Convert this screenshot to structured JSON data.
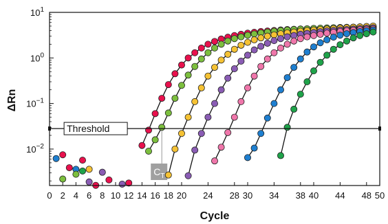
{
  "chart_data": {
    "type": "scatter",
    "title": "",
    "xlabel": "Cycle",
    "ylabel": "ΔRn",
    "xlim": [
      0,
      50
    ],
    "ylim_log10": [
      -2.8,
      1
    ],
    "log_y": true,
    "x_ticks": [
      0,
      2,
      4,
      6,
      8,
      10,
      12,
      14,
      16,
      18,
      20,
      24,
      28,
      30,
      34,
      38,
      40,
      44,
      48,
      50
    ],
    "y_ticks": [
      {
        "mantissa": "10",
        "exp": "1",
        "value_log10": 1
      },
      {
        "mantissa": "10",
        "exp": "0",
        "value_log10": 0
      },
      {
        "mantissa": "10",
        "exp": "−1",
        "value_log10": -1
      },
      {
        "mantissa": "10",
        "exp": "−2",
        "value_log10": -2
      }
    ],
    "threshold": {
      "label": "Threshold",
      "value_log10": -1.55
    },
    "ct_annotation": {
      "label": "C",
      "subscript": "T",
      "cycle": 17
    },
    "baseline_points": [
      {
        "x": 1,
        "y": 0.0062,
        "color": "#1e7fd0"
      },
      {
        "x": 2,
        "y": 0.0075,
        "color": "#e8114d"
      },
      {
        "x": 2,
        "y": 0.0022,
        "color": "#7cbf3e"
      },
      {
        "x": 3,
        "y": 0.0039,
        "color": "#e8114d"
      },
      {
        "x": 4,
        "y": 0.0036,
        "color": "#1e7fd0"
      },
      {
        "x": 4,
        "y": 0.0028,
        "color": "#7cbf3e"
      },
      {
        "x": 5,
        "y": 0.0057,
        "color": "#e8114d"
      },
      {
        "x": 5,
        "y": 0.0033,
        "color": "#1fa34a"
      },
      {
        "x": 6,
        "y": 0.0036,
        "color": "#f5c234"
      },
      {
        "x": 6,
        "y": 0.0019,
        "color": "#8a5cb4"
      },
      {
        "x": 7,
        "y": 0.0016,
        "color": "#e8114d"
      },
      {
        "x": 8,
        "y": 0.0031,
        "color": "#8a5cb4"
      },
      {
        "x": 9,
        "y": 0.0021,
        "color": "#e8114d"
      },
      {
        "x": 11,
        "y": 0.0017,
        "color": "#8a5cb4"
      },
      {
        "x": 12,
        "y": 0.0018,
        "color": "#e8114d"
      }
    ],
    "series": [
      {
        "color": "#e8114d",
        "x": [
          14,
          15,
          16,
          17,
          18,
          19,
          20,
          21,
          22,
          23,
          24,
          25,
          26,
          27,
          28,
          29,
          30,
          31,
          32,
          33,
          34,
          35,
          36,
          37,
          38,
          39,
          40,
          41,
          42,
          43,
          44,
          45,
          46,
          47,
          48,
          49
        ],
        "y": [
          0.012,
          0.026,
          0.06,
          0.13,
          0.26,
          0.45,
          0.7,
          1.0,
          1.3,
          1.65,
          2.0,
          2.3,
          2.6,
          2.85,
          3.1,
          3.3,
          3.5,
          3.65,
          3.8,
          3.9,
          4.0,
          4.1,
          4.2,
          4.25,
          4.3,
          4.35,
          4.4,
          4.45,
          4.5,
          4.52,
          4.55,
          4.58,
          4.6,
          4.62,
          4.64,
          4.66
        ]
      },
      {
        "color": "#7cbf3e",
        "x": [
          15,
          16,
          17,
          18,
          19,
          20,
          21,
          22,
          23,
          24,
          25,
          26,
          27,
          28,
          29,
          30,
          31,
          32,
          33,
          34,
          35,
          36,
          37,
          38,
          39,
          40,
          41,
          42,
          43,
          44,
          45,
          46,
          47,
          48,
          49
        ],
        "y": [
          0.009,
          0.016,
          0.03,
          0.062,
          0.13,
          0.25,
          0.42,
          0.65,
          0.95,
          1.3,
          1.65,
          2.0,
          2.35,
          2.65,
          2.9,
          3.15,
          3.35,
          3.55,
          3.7,
          3.85,
          4.0,
          4.1,
          4.2,
          4.3,
          4.35,
          4.45,
          4.5,
          4.55,
          4.6,
          4.65,
          4.7,
          4.75,
          4.8,
          4.85,
          4.9
        ]
      },
      {
        "color": "#f5c234",
        "x": [
          18,
          19,
          20,
          21,
          22,
          23,
          24,
          25,
          26,
          27,
          28,
          29,
          30,
          31,
          32,
          33,
          34,
          35,
          36,
          37,
          38,
          39,
          40,
          41,
          42,
          43,
          44,
          45,
          46,
          47,
          48,
          49
        ],
        "y": [
          0.0027,
          0.01,
          0.022,
          0.05,
          0.11,
          0.22,
          0.4,
          0.62,
          0.9,
          1.2,
          1.55,
          1.9,
          2.2,
          2.5,
          2.75,
          3.0,
          3.2,
          3.4,
          3.55,
          3.7,
          3.85,
          4.0,
          4.1,
          4.2,
          4.3,
          4.4,
          4.5,
          4.6,
          4.7,
          4.8,
          4.9,
          5.0
        ]
      },
      {
        "color": "#8a5cb4",
        "x": [
          21,
          22,
          23,
          24,
          25,
          26,
          27,
          28,
          29,
          30,
          31,
          32,
          33,
          34,
          35,
          36,
          37,
          38,
          39,
          40,
          41,
          42,
          43,
          44,
          45,
          46,
          47,
          48,
          49
        ],
        "y": [
          0.0026,
          0.0095,
          0.022,
          0.05,
          0.1,
          0.2,
          0.36,
          0.58,
          0.85,
          1.15,
          1.5,
          1.8,
          2.1,
          2.4,
          2.65,
          2.9,
          3.1,
          3.3,
          3.45,
          3.6,
          3.75,
          3.9,
          4.0,
          4.1,
          4.2,
          4.3,
          4.4,
          4.5,
          4.6
        ]
      },
      {
        "color": "#ef76aa",
        "x": [
          25,
          26,
          27,
          28,
          29,
          30,
          31,
          32,
          33,
          34,
          35,
          36,
          37,
          38,
          39,
          40,
          41,
          42,
          43,
          44,
          45,
          46,
          47,
          48,
          49
        ],
        "y": [
          0.0055,
          0.011,
          0.023,
          0.05,
          0.11,
          0.22,
          0.4,
          0.65,
          0.95,
          1.3,
          1.65,
          2.0,
          2.35,
          2.65,
          2.9,
          3.1,
          3.3,
          3.5,
          3.65,
          3.8,
          3.95,
          4.05,
          4.15,
          4.25,
          4.35
        ]
      },
      {
        "color": "#1e7fd0",
        "x": [
          30,
          31,
          32,
          33,
          34,
          35,
          36,
          37,
          38,
          39,
          40,
          41,
          42,
          43,
          44,
          45,
          46,
          47,
          48,
          49
        ],
        "y": [
          0.0065,
          0.0105,
          0.022,
          0.048,
          0.1,
          0.2,
          0.37,
          0.62,
          0.95,
          1.35,
          1.75,
          2.15,
          2.5,
          2.85,
          3.15,
          3.4,
          3.6,
          3.8,
          3.95,
          4.1
        ]
      },
      {
        "color": "#1fa34a",
        "x": [
          35,
          36,
          37,
          38,
          39,
          40,
          41,
          42,
          43,
          44,
          45,
          46,
          47,
          48,
          49
        ],
        "y": [
          0.0072,
          0.03,
          0.075,
          0.16,
          0.3,
          0.52,
          0.8,
          1.15,
          1.55,
          1.95,
          2.35,
          2.75,
          3.1,
          3.4,
          3.7
        ]
      }
    ]
  }
}
